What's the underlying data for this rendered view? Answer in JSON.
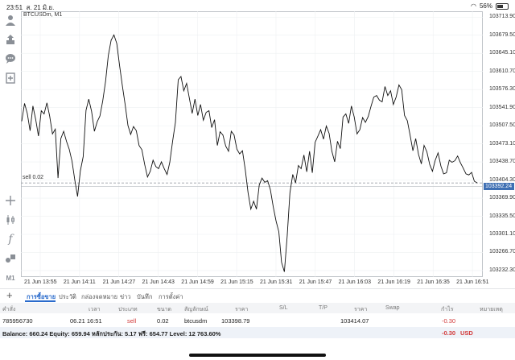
{
  "status": {
    "time": "23:51",
    "date": "ส. 21 มิ.ย.",
    "wifi": "wifi-icon",
    "battery_pct": "56%"
  },
  "colors": {
    "line": "#111111",
    "accent": "#2a6bcc",
    "price_tag": "#3e6fb3",
    "loss": "#d23b3b"
  },
  "sidebar": {
    "icons": [
      "user-icon",
      "deposit-icon",
      "chat-icon",
      "add-chart-icon",
      "crosshair-icon",
      "candles-icon",
      "indicator-f-icon",
      "objects-icon"
    ],
    "timeframe": "M1"
  },
  "chart": {
    "symbol": "BTCUSDm, M1",
    "sell_line_label": "sell 0.02",
    "current_price": "103392.24"
  },
  "chart_data": {
    "type": "line",
    "title": "BTCUSDm, M1",
    "y_ticks": [
      "103713.90",
      "103679.50",
      "103645.10",
      "103610.70",
      "103576.30",
      "103541.90",
      "103507.50",
      "103473.10",
      "103438.70",
      "103404.30",
      "103369.90",
      "103335.50",
      "103301.10",
      "103266.70",
      "103232.30"
    ],
    "x_ticks": [
      "21 Jun 13:55",
      "21 Jun 14:11",
      "21 Jun 14:27",
      "21 Jun 14:43",
      "21 Jun 14:59",
      "21 Jun 15:15",
      "21 Jun 15:31",
      "21 Jun 15:47",
      "21 Jun 16:03",
      "21 Jun 16:19",
      "21 Jun 16:35",
      "21 Jun 16:51"
    ],
    "ylim": [
      103220,
      103725
    ],
    "sell_level": 103398.79,
    "current": 103392.24,
    "values": [
      103516,
      103550,
      103531,
      103498,
      103545,
      103519,
      103488,
      103536,
      103530,
      103551,
      103526,
      103492,
      103501,
      103408,
      103483,
      103497,
      103478,
      103463,
      103440,
      103404,
      103373,
      103422,
      103449,
      103537,
      103558,
      103535,
      103497,
      103515,
      103526,
      103555,
      103592,
      103641,
      103670,
      103680,
      103664,
      103623,
      103584,
      103548,
      103508,
      103491,
      103506,
      103498,
      103470,
      103462,
      103434,
      103410,
      103421,
      103442,
      103430,
      103426,
      103439,
      103426,
      103415,
      103438,
      103478,
      103514,
      103595,
      103601,
      103574,
      103588,
      103560,
      103531,
      103558,
      103527,
      103548,
      103518,
      103533,
      103536,
      103504,
      103519,
      103470,
      103496,
      103490,
      103469,
      103459,
      103497,
      103490,
      103463,
      103454,
      103460,
      103424,
      103380,
      103349,
      103364,
      103349,
      103395,
      103408,
      103400,
      103403,
      103386,
      103354,
      103327,
      103306,
      103248,
      103230,
      103298,
      103380,
      103415,
      103399,
      103432,
      103426,
      103452,
      103420,
      103459,
      103418,
      103476,
      103488,
      103500,
      103482,
      103507,
      103493,
      103459,
      103439,
      103478,
      103464,
      103524,
      103530,
      103512,
      103545,
      103524,
      103492,
      103500,
      103523,
      103514,
      103525,
      103544,
      103562,
      103565,
      103556,
      103553,
      103582,
      103565,
      103574,
      103548,
      103562,
      103585,
      103576,
      103527,
      103517,
      103489,
      103460,
      103483,
      103453,
      103435,
      103470,
      103458,
      103434,
      103421,
      103442,
      103456,
      103431,
      103416,
      103418,
      103442,
      103438,
      103441,
      103450,
      103437,
      103427,
      103416,
      103414,
      103419,
      103402,
      103399
    ]
  },
  "tabs": {
    "labels": [
      "การซื้อขาย",
      "ประวัติ",
      "กล่องจดหมาย",
      "ข่าว",
      "บันทึก",
      "การตั้งค่า"
    ]
  },
  "columns": [
    "คำสั่ง",
    "เวลา",
    "ประเภท",
    "ขนาด",
    "สัญลักษณ์",
    "ราคา",
    "S/L",
    "T/P",
    "ราคา",
    "Swap",
    "กำไร",
    "หมายเหตุ"
  ],
  "position": {
    "ticket": "785956730",
    "time": "06.21 16:51",
    "type": "sell",
    "size": "0.02",
    "symbol": "btcusdm",
    "open_price": "103398.79",
    "price": "103414.07",
    "profit": "-0.30"
  },
  "account": {
    "summary": "Balance: 660.24 Equity: 659.94 หลักประกัน: 5.17 ฟรี: 654.77 Level: 12 763.60%",
    "profit": "-0.30",
    "currency": "USD"
  }
}
